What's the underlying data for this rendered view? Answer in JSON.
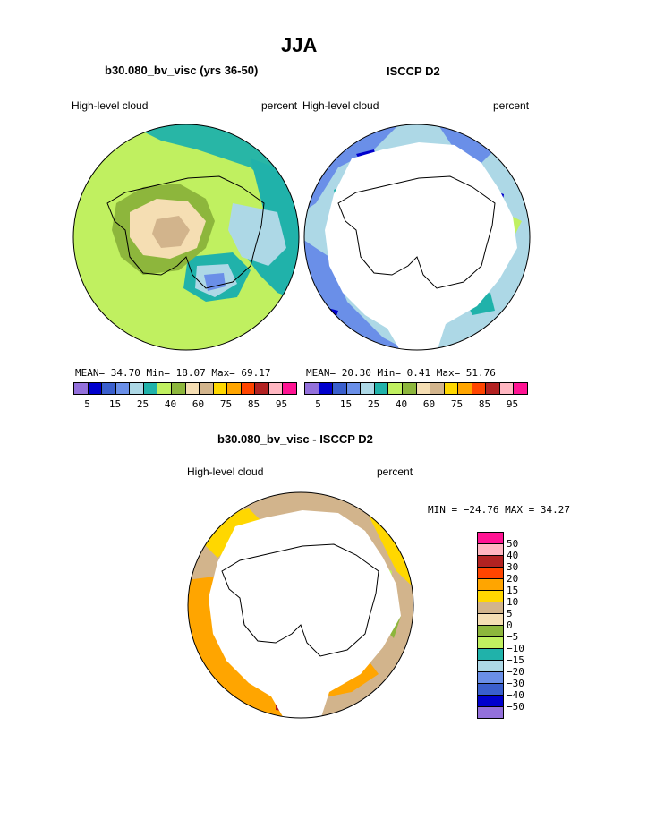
{
  "page": {
    "title": "JJA",
    "panel1": {
      "title": "b30.080_bv_visc (yrs 36-50)",
      "left_label": "High-level cloud",
      "right_label": "percent",
      "stats": "MEAN=  34.70  Min=  18.07  Max=  69.17"
    },
    "panel2": {
      "title": "ISCCP D2",
      "left_label": "High-level cloud",
      "right_label": "percent",
      "stats": "MEAN=  20.30  Min=   0.41  Max=  51.76"
    },
    "panel3": {
      "title": "b30.080_bv_visc - ISCCP D2",
      "left_label": "High-level cloud",
      "right_label": "percent",
      "stats": "MIN = −24.76 MAX =  34.27"
    }
  },
  "colors": {
    "abs_scale": [
      "#9370DB",
      "#0000CD",
      "#3A5FCD",
      "#6A8FE8",
      "#ADD8E6",
      "#20B2AA",
      "#C0F060",
      "#8DB63C",
      "#F5DEB3",
      "#D2B48C",
      "#FFD700",
      "#FFA500",
      "#FF4500",
      "#B22222",
      "#FFB6C1",
      "#FF1493"
    ],
    "diff_scale": [
      "#FF1493",
      "#FFB6C1",
      "#B22222",
      "#FF4500",
      "#FFA500",
      "#FFD700",
      "#D2B48C",
      "#F5DEB3",
      "#8DB63C",
      "#C0F060",
      "#20B2AA",
      "#ADD8E6",
      "#6A8FE8",
      "#3A5FCD",
      "#0000CD",
      "#9370DB"
    ]
  },
  "abs_labels": [
    "5",
    "15",
    "25",
    "40",
    "60",
    "75",
    "85",
    "95"
  ],
  "diff_labels": [
    "50",
    "40",
    "30",
    "20",
    "15",
    "10",
    "5",
    "0",
    "−5",
    "−10",
    "−15",
    "−20",
    "−30",
    "−40",
    "−50"
  ]
}
